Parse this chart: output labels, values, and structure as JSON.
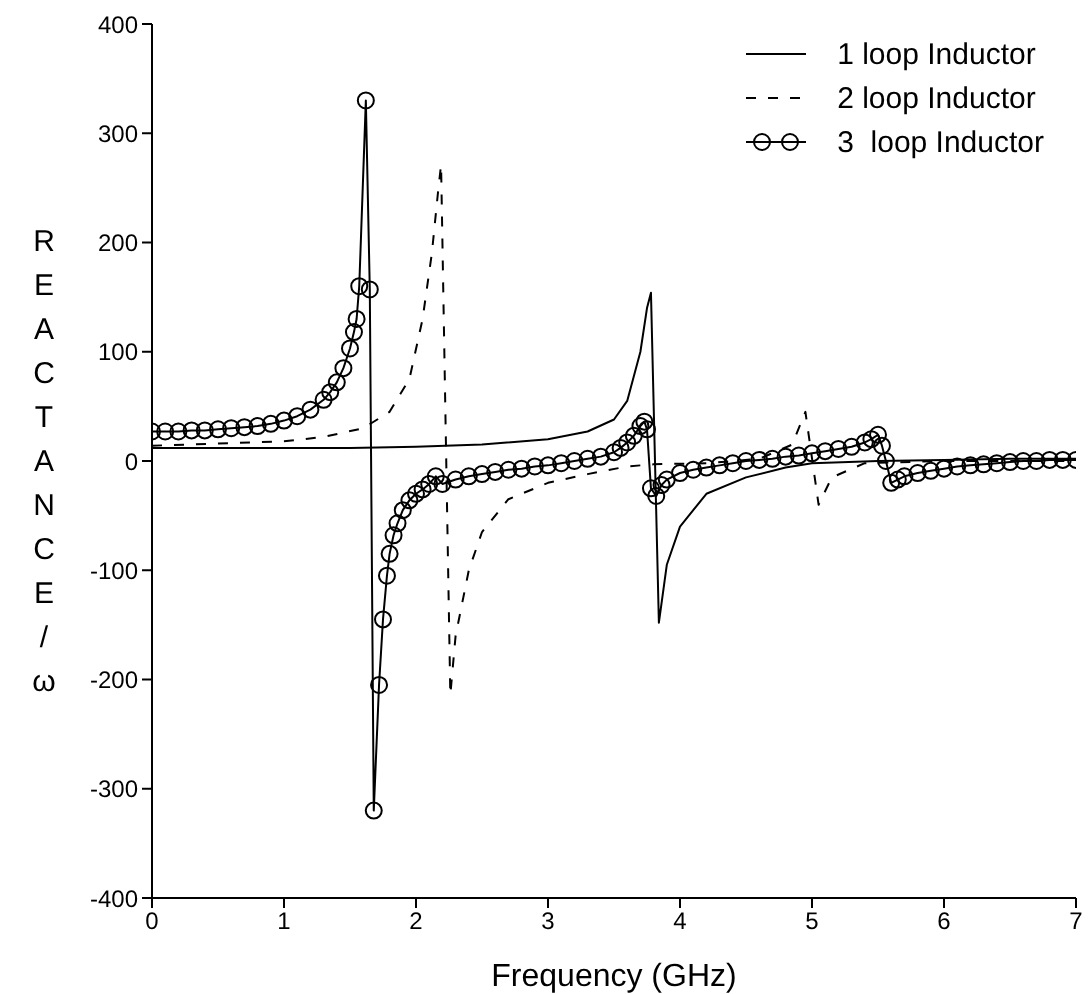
{
  "chart_data": {
    "type": "line",
    "xlabel": "Frequency (GHz)",
    "ylabel": "REACTANCE/ω",
    "xlim": [
      0,
      7
    ],
    "xticks": [
      0,
      1,
      2,
      3,
      4,
      5,
      6,
      7
    ],
    "ylim": [
      -400,
      400
    ],
    "yticks": [
      -400,
      -300,
      -200,
      -100,
      0,
      100,
      200,
      300,
      400
    ],
    "grid": false,
    "legend": "top right",
    "series": [
      {
        "name": "1 loop Inductor",
        "color": "#000000",
        "line_style": "solid",
        "marker": "none",
        "x": [
          0,
          0.5,
          1,
          1.5,
          2,
          2.5,
          3,
          3.3,
          3.5,
          3.6,
          3.7,
          3.75,
          3.78,
          3.84,
          3.9,
          4,
          4.2,
          4.5,
          4.8,
          5,
          5.5,
          6,
          6.5,
          7
        ],
        "values": [
          12,
          12,
          12,
          12,
          13,
          15,
          20,
          27,
          38,
          55,
          100,
          140,
          154,
          -148,
          -95,
          -60,
          -30,
          -15,
          -6,
          -2,
          0,
          1,
          2,
          2
        ]
      },
      {
        "name": "2 loop Inductor",
        "color": "#000000",
        "line_style": "dashed",
        "marker": "none",
        "x": [
          0,
          0.5,
          1,
          1.3,
          1.6,
          1.8,
          1.95,
          2.05,
          2.12,
          2.17,
          2.19,
          2.26,
          2.3,
          2.4,
          2.5,
          2.7,
          3,
          3.3,
          3.6,
          3.8,
          4.2,
          4.6,
          4.85,
          4.95,
          5.05,
          5.15,
          5.4,
          6,
          6.5,
          7
        ],
        "values": [
          14,
          16,
          18,
          22,
          30,
          45,
          75,
          130,
          190,
          250,
          271,
          -214,
          -160,
          -100,
          -65,
          -35,
          -20,
          -12,
          -5,
          -3,
          -2,
          2,
          15,
          45,
          -40,
          -15,
          -2,
          0,
          0,
          0
        ]
      },
      {
        "name": "3  loop Inductor",
        "color": "#000000",
        "line_style": "solid",
        "marker": "circle",
        "x": [
          0,
          0.1,
          0.2,
          0.3,
          0.4,
          0.5,
          0.6,
          0.7,
          0.8,
          0.9,
          1,
          1.1,
          1.2,
          1.3,
          1.35,
          1.4,
          1.45,
          1.5,
          1.53,
          1.55,
          1.57,
          1.62,
          1.65,
          1.68,
          1.72,
          1.75,
          1.78,
          1.8,
          1.83,
          1.86,
          1.9,
          1.95,
          2,
          2.05,
          2.1,
          2.15,
          2.2,
          2.3,
          2.4,
          2.5,
          2.6,
          2.7,
          2.8,
          2.9,
          3,
          3.1,
          3.2,
          3.3,
          3.4,
          3.5,
          3.55,
          3.6,
          3.65,
          3.7,
          3.73,
          3.75,
          3.78,
          3.82,
          3.86,
          3.9,
          4,
          4.1,
          4.2,
          4.3,
          4.4,
          4.5,
          4.6,
          4.7,
          4.8,
          4.9,
          5,
          5.1,
          5.2,
          5.3,
          5.4,
          5.45,
          5.5,
          5.53,
          5.56,
          5.6,
          5.65,
          5.7,
          5.8,
          5.9,
          6,
          6.1,
          6.2,
          6.3,
          6.4,
          6.5,
          6.6,
          6.7,
          6.8,
          6.9,
          7
        ],
        "values": [
          27,
          27,
          27,
          28,
          28,
          29,
          30,
          31,
          32,
          34,
          37,
          41,
          47,
          56,
          63,
          72,
          85,
          103,
          118,
          130,
          160,
          330,
          157,
          -320,
          -205,
          -145,
          -105,
          -85,
          -68,
          -57,
          -45,
          -36,
          -30,
          -26,
          -21,
          -14,
          -21,
          -17,
          -14,
          -12,
          -10,
          -8,
          -7,
          -5,
          -4,
          -2,
          0,
          2,
          4,
          8,
          12,
          17,
          23,
          32,
          36,
          29,
          -25,
          -32,
          -22,
          -17,
          -11,
          -8,
          -6,
          -4,
          -2,
          0,
          1,
          2,
          4,
          5,
          7,
          9,
          11,
          13,
          17,
          20,
          24,
          14,
          0,
          -20,
          -17,
          -14,
          -11,
          -9,
          -7,
          -5,
          -4,
          -3,
          -2,
          -1,
          0,
          0,
          1,
          1,
          1
        ]
      }
    ]
  }
}
